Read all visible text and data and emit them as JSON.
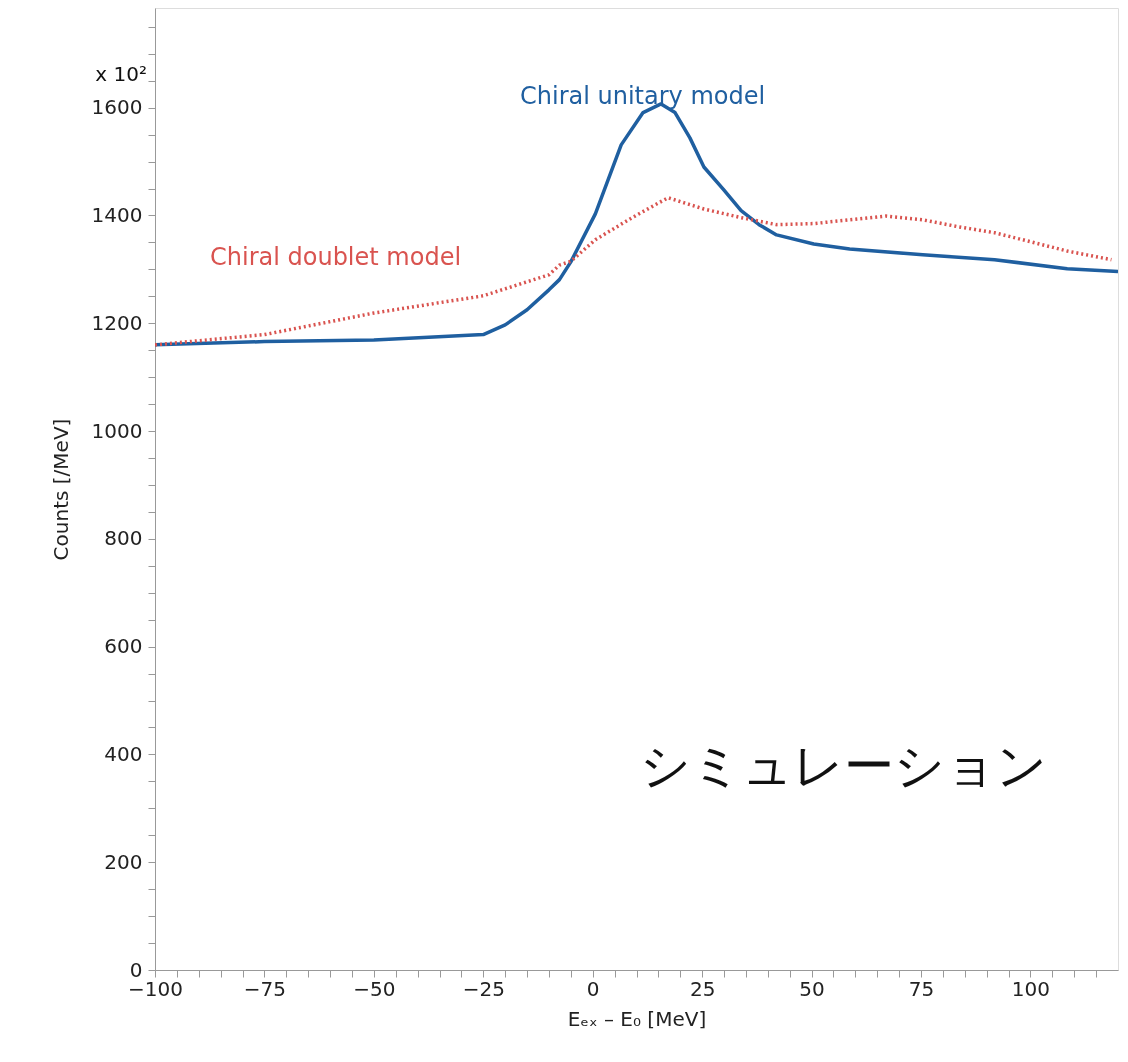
{
  "chart_data": {
    "type": "line",
    "xlabel": "Eₑₓ – E₀ [MeV]",
    "ylabel": "Counts [/MeV]",
    "annotations": [
      "x 10²",
      "シミュレーション"
    ],
    "xlim": [
      -100,
      120
    ],
    "ylim": [
      0,
      1785
    ],
    "xticks": [
      -100,
      {
        "value": -95,
        "label": null
      },
      {
        "value": -90,
        "label": null
      },
      {
        "value": -85,
        "label": null
      },
      {
        "value": -80,
        "label": null
      },
      -75,
      {
        "value": -70,
        "label": null
      },
      {
        "value": -65,
        "label": null
      },
      {
        "value": -60,
        "label": null
      },
      {
        "value": -55,
        "label": null
      },
      -50,
      {
        "value": -45,
        "label": null
      },
      {
        "value": -40,
        "label": null
      },
      {
        "value": -35,
        "label": null
      },
      {
        "value": -30,
        "label": null
      },
      -25,
      {
        "value": -20,
        "label": null
      },
      {
        "value": -15,
        "label": null
      },
      {
        "value": -10,
        "label": null
      },
      {
        "value": -5,
        "label": null
      },
      0,
      {
        "value": 5,
        "label": null
      },
      {
        "value": 10,
        "label": null
      },
      {
        "value": 15,
        "label": null
      },
      {
        "value": 20,
        "label": null
      },
      25,
      {
        "value": 30,
        "label": null
      },
      {
        "value": 35,
        "label": null
      },
      {
        "value": 40,
        "label": null
      },
      {
        "value": 45,
        "label": null
      },
      50,
      {
        "value": 55,
        "label": null
      },
      {
        "value": 60,
        "label": null
      },
      {
        "value": 65,
        "label": null
      },
      {
        "value": 70,
        "label": null
      },
      75,
      {
        "value": 80,
        "label": null
      },
      {
        "value": 85,
        "label": null
      },
      {
        "value": 90,
        "label": null
      },
      {
        "value": 95,
        "label": null
      },
      100,
      {
        "value": 105,
        "label": null
      },
      {
        "value": 110,
        "label": null
      },
      {
        "value": 115,
        "label": null
      }
    ],
    "yticks": [
      0,
      {
        "value": 50,
        "label": null
      },
      {
        "value": 100,
        "label": null
      },
      {
        "value": 150,
        "label": null
      },
      200,
      {
        "value": 250,
        "label": null
      },
      {
        "value": 300,
        "label": null
      },
      {
        "value": 350,
        "label": null
      },
      400,
      {
        "value": 450,
        "label": null
      },
      {
        "value": 500,
        "label": null
      },
      {
        "value": 550,
        "label": null
      },
      600,
      {
        "value": 650,
        "label": null
      },
      {
        "value": 700,
        "label": null
      },
      {
        "value": 750,
        "label": null
      },
      800,
      {
        "value": 850,
        "label": null
      },
      {
        "value": 900,
        "label": null
      },
      {
        "value": 950,
        "label": null
      },
      1000,
      {
        "value": 1050,
        "label": null
      },
      {
        "value": 1100,
        "label": null
      },
      {
        "value": 1150,
        "label": null
      },
      1200,
      {
        "value": 1250,
        "label": null
      },
      {
        "value": 1300,
        "label": null
      },
      {
        "value": 1350,
        "label": null
      },
      1400,
      {
        "value": 1450,
        "label": null
      },
      {
        "value": 1500,
        "label": null
      },
      {
        "value": 1550,
        "label": null
      },
      1600,
      {
        "value": 1650,
        "label": null
      },
      {
        "value": 1700,
        "label": null
      },
      {
        "value": 1750,
        "label": null
      }
    ],
    "grid": false,
    "series": [
      {
        "name": "Chiral unitary model",
        "color": "#1f5fa0",
        "line_style": "solid",
        "x": [
          -100,
          -75,
          -50,
          -25,
          -20,
          -15,
          -10,
          -7.6,
          -5,
          0.6,
          6.5,
          11.5,
          15.6,
          18.8,
          22.2,
          25.4,
          29.8,
          33.9,
          38,
          42,
          50.5,
          58.7,
          75.4,
          91.8,
          108.4,
          120
        ],
        "values": [
          1160,
          1166,
          1169,
          1179,
          1197,
          1225,
          1262,
          1281,
          1314,
          1403,
          1531,
          1591,
          1607,
          1591,
          1544,
          1490,
          1449,
          1409,
          1383,
          1364,
          1347,
          1338,
          1327,
          1318,
          1301,
          1296
        ]
      },
      {
        "name": "Chiral doublet model",
        "color": "#d9534f",
        "line_style": "dotted",
        "x": [
          -100,
          -75,
          -50,
          -25,
          -10,
          -7.6,
          -5,
          0.6,
          9,
          17.2,
          25.4,
          33.9,
          42,
          50.5,
          58.7,
          67,
          75.4,
          83.6,
          91.8,
          100.2,
          108.4,
          118.5
        ],
        "values": [
          1160,
          1179,
          1219,
          1251,
          1290,
          1308,
          1315,
          1355,
          1396,
          1433,
          1412,
          1396,
          1383,
          1385,
          1392,
          1399,
          1392,
          1379,
          1368,
          1351,
          1334,
          1318
        ]
      }
    ]
  }
}
